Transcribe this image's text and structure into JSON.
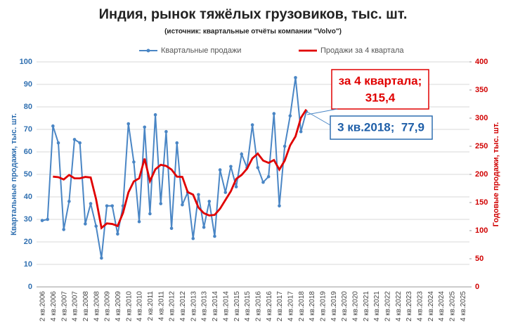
{
  "chart_data": {
    "type": "line",
    "title": "Индия, рынок тяжёлых грузовиков, тыс. шт.",
    "subtitle": "(источник: квартальные отчёты компании \"Volvo\")",
    "y_label": "Квартальные продажи, тыс. шт.",
    "y2_label": "Годовые продажи, тыс. шт.",
    "annotations": [
      "за 4 квартала;",
      "315,4",
      "3 кв.2018;  77,9"
    ],
    "categories": [
      "2 кв.2006",
      null,
      "4 кв.2006",
      null,
      "2 кв.2007",
      null,
      "4 кв.2007",
      null,
      "2 кв.2008",
      null,
      "4 кв.2008",
      null,
      "2 кв.2009",
      null,
      "4 кв.2009",
      null,
      "2 кв.2010",
      null,
      "4 кв.2010",
      null,
      "2 кв.2011",
      null,
      "4 кв.2011",
      null,
      "2 кв.2012",
      null,
      "4 кв.2012",
      null,
      "2 кв.2013",
      null,
      "4 кв.2013",
      null,
      "2 кв.2014",
      null,
      "4 кв.2014",
      null,
      "2 кв.2015",
      null,
      "4 кв.2015",
      null,
      "2 кв.2016",
      null,
      "4 кв.2016",
      null,
      "2 кв.2017",
      null,
      "4 кв.2017",
      null,
      "2 кв.2018",
      null,
      "4 кв.2018",
      null,
      "2 кв.2019",
      null,
      "4 кв.2019",
      null,
      "2 кв.2020",
      null,
      "4 кв.2020",
      null,
      "2 кв.2021",
      null,
      "4 кв.2021",
      null,
      "2 кв.2022",
      null,
      "4 кв.2022",
      null,
      "2 кв.2023",
      null,
      "4 кв.2023",
      null,
      "2 кв.2024",
      null,
      "4 кв.2024",
      null,
      "2 кв.2025",
      null,
      "4 кв.2025"
    ],
    "series": [
      {
        "name": "Квартальные продажи",
        "color": "#4a86c5",
        "marker": true,
        "axis": "y",
        "values": [
          29.5,
          30,
          71.5,
          64,
          25.5,
          38,
          65.5,
          64,
          28,
          37,
          27,
          12.8,
          36,
          36,
          23.5,
          36,
          72.5,
          55.5,
          29,
          71,
          32.5,
          76.5,
          37,
          69,
          26,
          64,
          36.5,
          42,
          21.5,
          41,
          26.5,
          38,
          22.5,
          52,
          42,
          53.5,
          44.5,
          59,
          53,
          72,
          53,
          46.5,
          49,
          77,
          36,
          62.5,
          76,
          93,
          69,
          77.9,
          null,
          null,
          null,
          null,
          null,
          null,
          null,
          null,
          null,
          null,
          null,
          null,
          null,
          null,
          null,
          null,
          null,
          null,
          null,
          null,
          null,
          null,
          null,
          null,
          null,
          null,
          null,
          null,
          null
        ]
      },
      {
        "name": "Продажи за 4 квартала",
        "color": "#e00000",
        "marker": false,
        "axis": "y2",
        "values": [
          null,
          null,
          196,
          195,
          191,
          199,
          193,
          193,
          195.5,
          194.5,
          156,
          104.8,
          112.8,
          111.8,
          108.3,
          131.5,
          168,
          187.5,
          193,
          228,
          188,
          209,
          217,
          215,
          208.5,
          196,
          195.5,
          168.5,
          164,
          141,
          131,
          127,
          128,
          139,
          154.5,
          170,
          192,
          199,
          210,
          228.5,
          237,
          224.5,
          220.5,
          225.5,
          208.5,
          224.5,
          251.5,
          267.5,
          300.5,
          315.4,
          null,
          null,
          null,
          null,
          null,
          null,
          null,
          null,
          null,
          null,
          null,
          null,
          null,
          null,
          null,
          null,
          null,
          null,
          null,
          null,
          null,
          null,
          null,
          null,
          null,
          null,
          null,
          null,
          null
        ]
      }
    ],
    "ylim": [
      0,
      100
    ],
    "yticks": [
      0,
      10,
      20,
      30,
      40,
      50,
      60,
      70,
      80,
      90,
      100
    ],
    "y2lim": [
      0,
      400
    ],
    "y2ticks": [
      0,
      50,
      100,
      150,
      200,
      250,
      300,
      350,
      400
    ],
    "grid": true,
    "legend": "top"
  }
}
